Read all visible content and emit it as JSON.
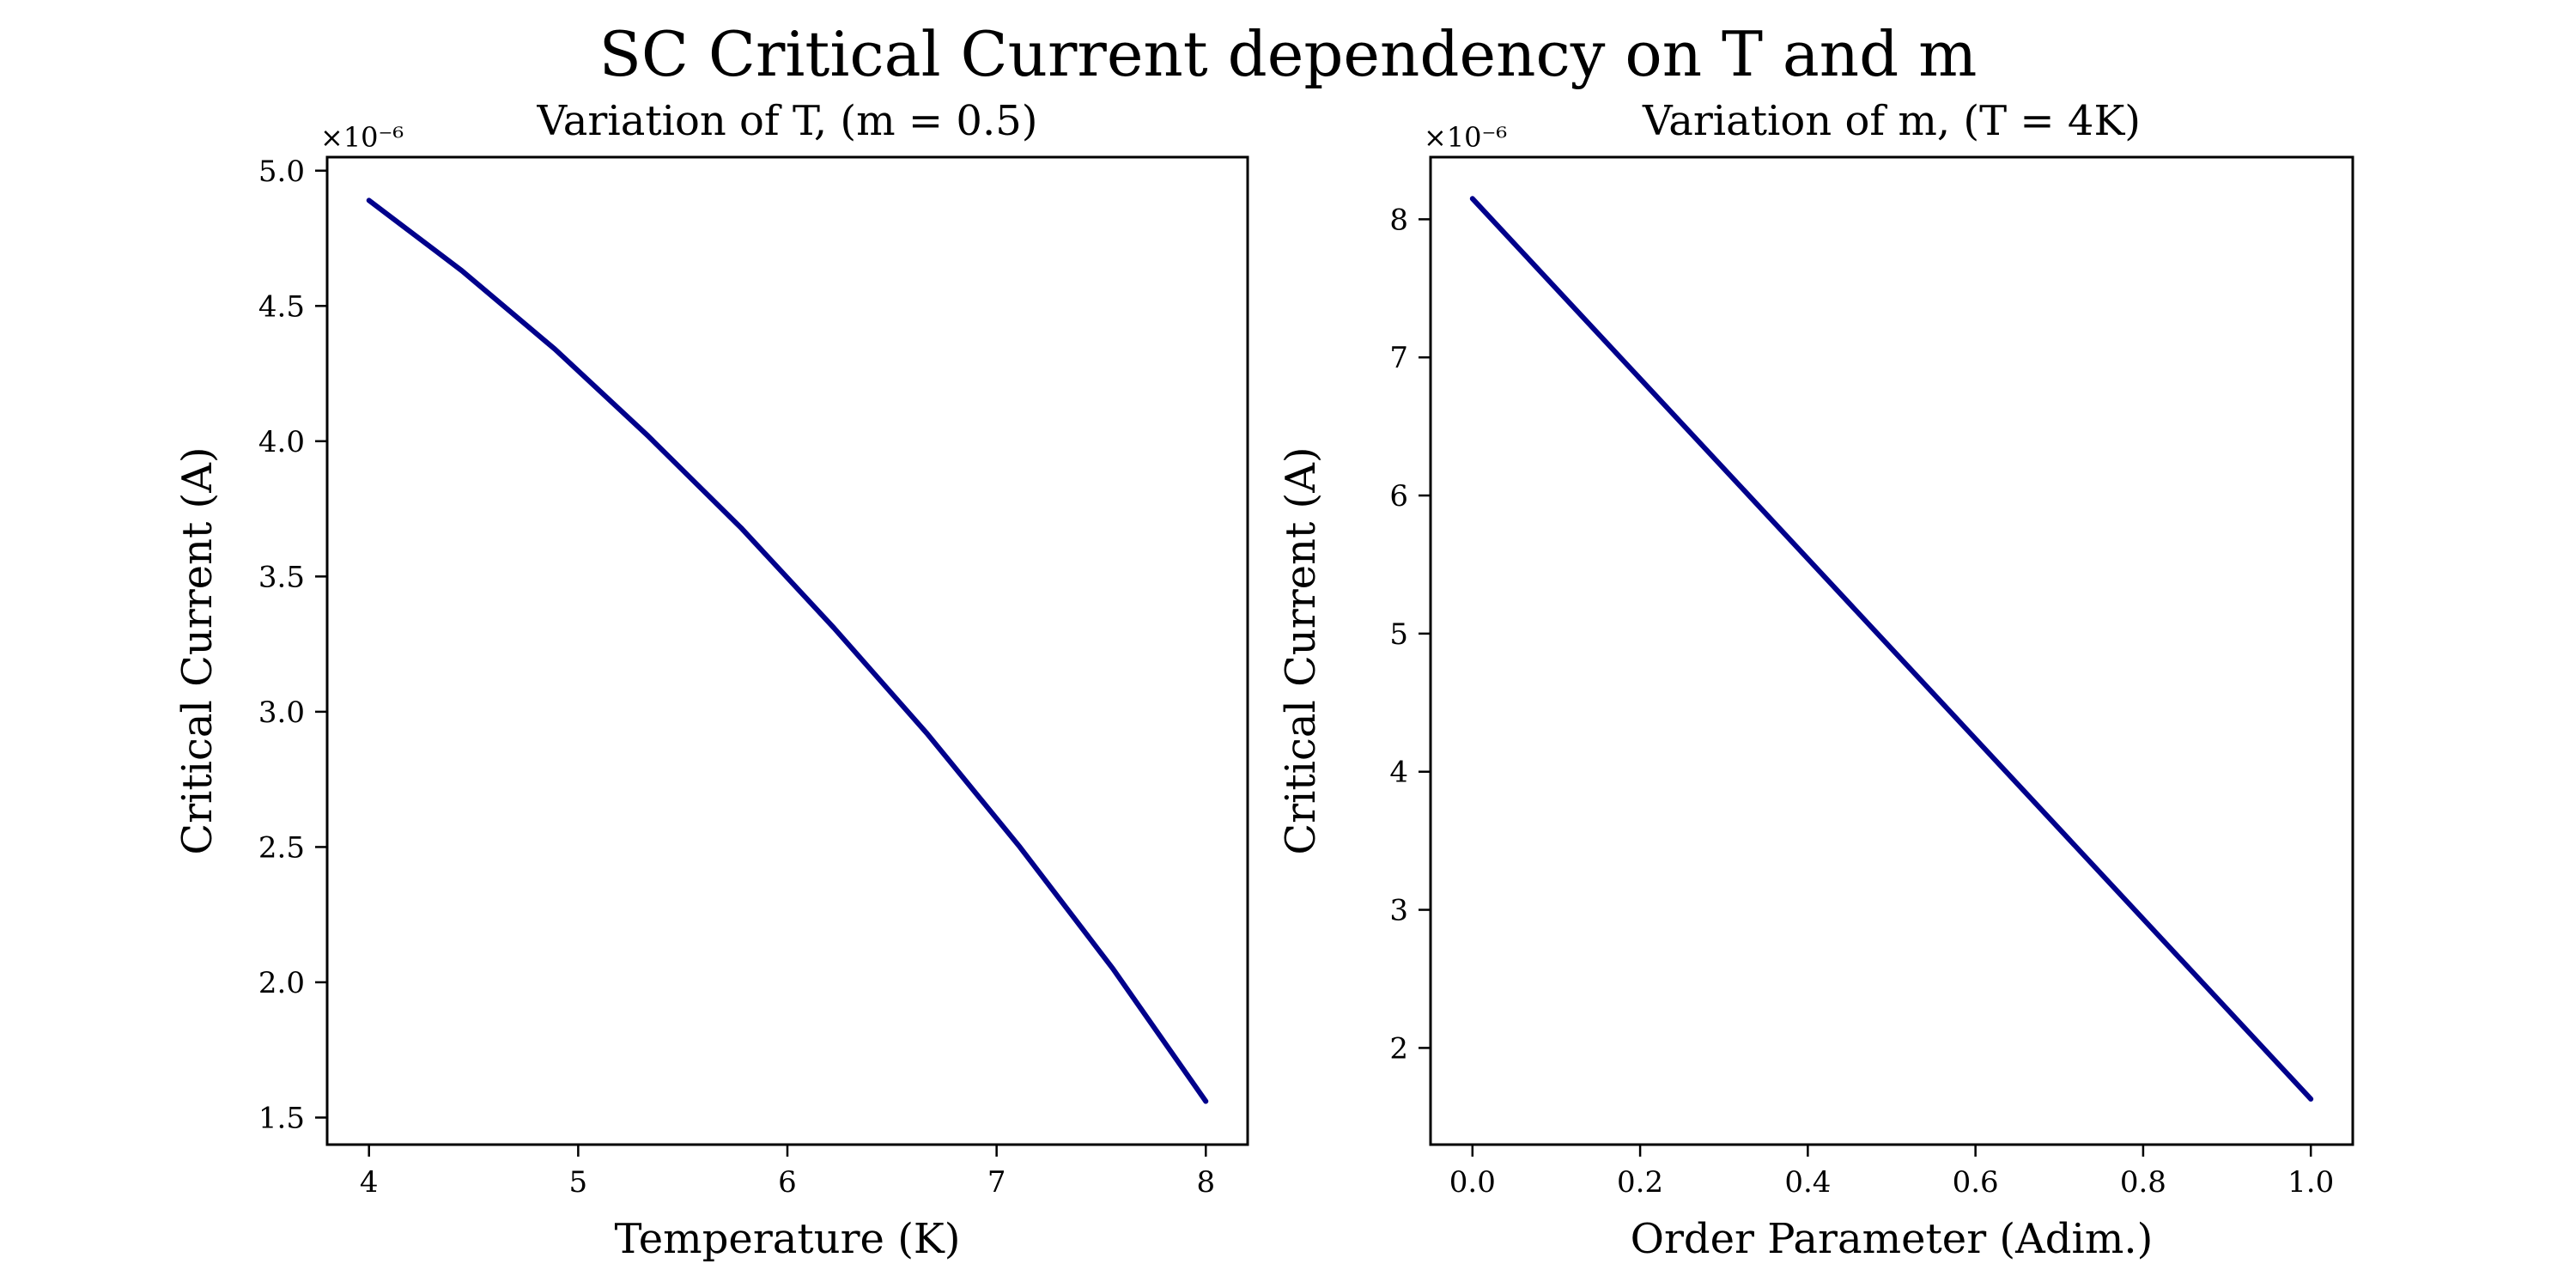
{
  "figure_title": "SC Critical Current dependency on T and m",
  "colors": {
    "series": "#00008b",
    "axes": "#000000",
    "background": "#ffffff"
  },
  "chart_data": [
    {
      "type": "line",
      "title": "Variation of T, (m = 0.5)",
      "xlabel": "Temperature (K)",
      "ylabel": "Critical Current (A)",
      "y_offset_label": "×10⁻⁶",
      "xlim": [
        3.8,
        8.2
      ],
      "ylim": [
        1.4,
        5.05
      ],
      "xticks": [
        4,
        5,
        6,
        7,
        8
      ],
      "xtick_labels": [
        "4",
        "5",
        "6",
        "7",
        "8"
      ],
      "yticks": [
        1.5,
        2.0,
        2.5,
        3.0,
        3.5,
        4.0,
        4.5,
        5.0
      ],
      "ytick_labels": [
        "1.5",
        "2.0",
        "2.5",
        "3.0",
        "3.5",
        "4.0",
        "4.5",
        "5.0"
      ],
      "grid": false,
      "series": [
        {
          "x": [
            4.0,
            4.444,
            4.889,
            5.333,
            5.778,
            6.222,
            6.667,
            7.111,
            7.556,
            8.0
          ],
          "values": [
            4.89,
            4.63,
            4.34,
            4.02,
            3.68,
            3.31,
            2.92,
            2.5,
            2.05,
            1.56
          ]
        }
      ]
    },
    {
      "type": "line",
      "title": "Variation of m, (T = 4K)",
      "xlabel": "Order Parameter (Adim.)",
      "ylabel": "Critical Current (A)",
      "y_offset_label": "×10⁻⁶",
      "xlim": [
        -0.05,
        1.05
      ],
      "ylim": [
        1.3,
        8.45
      ],
      "xticks": [
        0.0,
        0.2,
        0.4,
        0.6,
        0.8,
        1.0
      ],
      "xtick_labels": [
        "0.0",
        "0.2",
        "0.4",
        "0.6",
        "0.8",
        "1.0"
      ],
      "yticks": [
        2,
        3,
        4,
        5,
        6,
        7,
        8
      ],
      "ytick_labels": [
        "2",
        "3",
        "4",
        "5",
        "6",
        "7",
        "8"
      ],
      "grid": false,
      "series": [
        {
          "x": [
            0.0,
            1.0
          ],
          "values": [
            8.15,
            1.63
          ]
        }
      ]
    }
  ]
}
